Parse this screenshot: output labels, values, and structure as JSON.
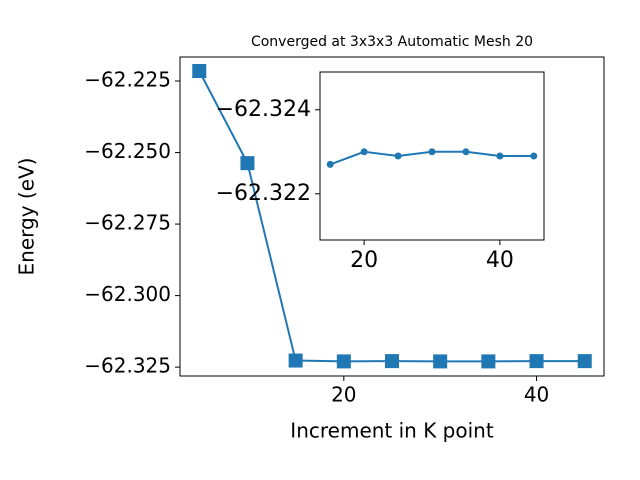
{
  "chart_data": [
    {
      "type": "line",
      "title": "Converged at 3x3x3 Automatic Mesh 20",
      "x_label": "Increment in K point",
      "y_label": "Energy (eV)",
      "x": [
        5,
        10,
        15,
        20,
        25,
        30,
        35,
        40,
        45
      ],
      "series": [
        {
          "color": "#1f77b4",
          "marker": "square",
          "values": [
            -62.2215,
            -62.2537,
            -62.3227,
            -62.323,
            -62.3229,
            -62.323,
            -62.323,
            -62.3229,
            -62.3229
          ]
        }
      ],
      "xlim": [
        3,
        47
      ],
      "ylim": [
        -62.3281,
        -62.2166
      ],
      "xticks": [
        20,
        40
      ],
      "yticks": [
        {
          "value": -62.225,
          "label": "−62.225"
        },
        {
          "value": -62.25,
          "label": "−62.250"
        },
        {
          "value": -62.275,
          "label": "−62.275"
        },
        {
          "value": -62.3,
          "label": "−62.300"
        },
        {
          "value": -62.325,
          "label": "−62.325"
        }
      ]
    },
    {
      "type": "line",
      "x": [
        15,
        20,
        25,
        30,
        35,
        40,
        45
      ],
      "series": [
        {
          "color": "#1f77b4",
          "marker": "circle",
          "values": [
            -62.3227,
            -62.323,
            -62.3229,
            -62.323,
            -62.323,
            -62.3229,
            -62.3229
          ]
        }
      ],
      "xlim": [
        13.5,
        46.5
      ],
      "ylim": [
        -62.3209,
        -62.3249
      ],
      "xticks": [
        20,
        40
      ],
      "yticks": [
        {
          "value": -62.324,
          "label": "−62.324"
        },
        {
          "value": -62.322,
          "label": "−62.322"
        }
      ]
    }
  ]
}
